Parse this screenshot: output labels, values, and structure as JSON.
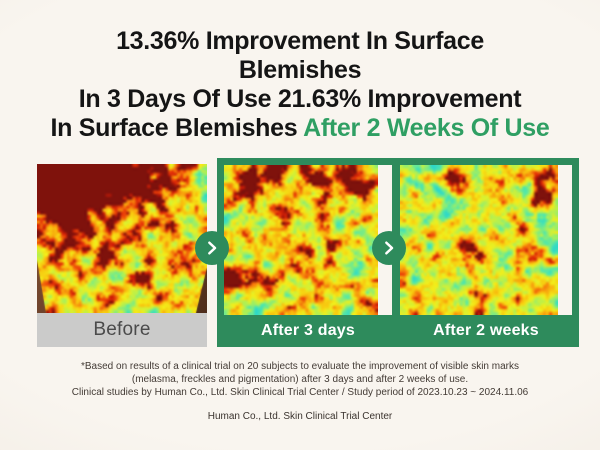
{
  "headline": {
    "line1": "13.36% Improvement In Surface",
    "line2": "Blemishes",
    "line3": "In 3 Days Of Use 21.63% Improvement",
    "line4_black": "In Surface Blemishes ",
    "line4_green": "After 2 Weeks Of Use"
  },
  "colors": {
    "accent_green": "#2e8b5c",
    "headline_green": "#2f9f63",
    "headline_black": "#151515",
    "background_cream": "#f8f4ee",
    "label_gray_bg": "#cbcbca",
    "label_gray_text": "#4b4b4b",
    "label_green_text": "#ffffff"
  },
  "panels": [
    {
      "label": "Before",
      "style": "gray",
      "heatmap": {
        "seed": 11,
        "base": 0.58,
        "grain": 0.22,
        "amp": 2.6,
        "mask_polygon": [
          [
            0,
            0
          ],
          [
            1,
            0
          ],
          [
            1,
            0.695
          ],
          [
            0.935,
            1
          ],
          [
            0.053,
            1
          ],
          [
            0,
            0.645
          ]
        ],
        "skin_colors": [
          "#8a5639",
          "#4f2e1c"
        ],
        "blobs": [
          [
            0.15,
            0.12,
            0.4,
            0.3
          ],
          [
            0.6,
            0.05,
            0.35,
            0.22
          ],
          [
            0.1,
            0.08,
            0.16,
            0.55
          ],
          [
            0.24,
            0.16,
            0.13,
            0.5
          ],
          [
            0.07,
            0.3,
            0.11,
            0.45
          ],
          [
            0.2,
            0.3,
            0.09,
            0.4
          ],
          [
            0.36,
            0.06,
            0.1,
            0.45
          ],
          [
            0.52,
            0.05,
            0.11,
            0.5
          ],
          [
            0.66,
            0.02,
            0.09,
            0.5
          ],
          [
            0.8,
            0.05,
            0.08,
            0.4
          ],
          [
            0.44,
            0.2,
            0.07,
            0.35
          ],
          [
            0.3,
            0.44,
            0.05,
            0.3
          ],
          [
            0.38,
            0.6,
            0.07,
            0.55
          ],
          [
            0.14,
            0.54,
            0.05,
            0.3
          ],
          [
            0.56,
            0.48,
            0.045,
            0.3
          ],
          [
            0.72,
            0.4,
            0.045,
            0.3
          ],
          [
            0.62,
            0.74,
            0.05,
            0.35
          ],
          [
            0.82,
            0.68,
            0.045,
            0.3
          ],
          [
            0.46,
            0.86,
            0.05,
            0.3
          ],
          [
            0.88,
            0.52,
            0.04,
            0.3
          ],
          [
            0.25,
            0.72,
            0.04,
            0.25
          ],
          [
            0.7,
            0.88,
            0.04,
            0.3
          ]
        ]
      }
    },
    {
      "label": "After 3 days",
      "style": "green",
      "heatmap": {
        "seed": 23,
        "base": 0.55,
        "grain": 0.22,
        "amp": 2.6,
        "blobs": [
          [
            0.5,
            0.08,
            0.3,
            0.18
          ],
          [
            0.17,
            0.1,
            0.12,
            0.55
          ],
          [
            0.3,
            0.06,
            0.08,
            0.4
          ],
          [
            0.57,
            0.08,
            0.08,
            0.35
          ],
          [
            0.76,
            0.06,
            0.11,
            0.5
          ],
          [
            0.9,
            0.16,
            0.08,
            0.4
          ],
          [
            0.36,
            0.28,
            0.06,
            0.35
          ],
          [
            0.62,
            0.3,
            0.07,
            0.45
          ],
          [
            0.14,
            0.48,
            0.055,
            0.35
          ],
          [
            0.44,
            0.52,
            0.06,
            0.4
          ],
          [
            0.7,
            0.52,
            0.05,
            0.3
          ],
          [
            0.1,
            0.74,
            0.08,
            0.5
          ],
          [
            0.3,
            0.78,
            0.05,
            0.3
          ],
          [
            0.56,
            0.74,
            0.055,
            0.35
          ],
          [
            0.82,
            0.78,
            0.04,
            0.25
          ]
        ]
      }
    },
    {
      "label": "After 2 weeks",
      "style": "green",
      "heatmap": {
        "seed": 37,
        "base": 0.5,
        "grain": 0.22,
        "amp": 2.6,
        "blobs": [
          [
            0.3,
            0.08,
            0.07,
            0.4
          ],
          [
            0.56,
            0.12,
            0.055,
            0.3
          ],
          [
            0.88,
            0.07,
            0.09,
            0.6
          ],
          [
            0.87,
            0.24,
            0.07,
            0.5
          ],
          [
            0.14,
            0.28,
            0.05,
            0.3
          ],
          [
            0.46,
            0.34,
            0.05,
            0.25
          ],
          [
            0.76,
            0.4,
            0.05,
            0.3
          ],
          [
            0.44,
            0.54,
            0.075,
            0.5
          ],
          [
            0.5,
            0.64,
            0.06,
            0.35
          ],
          [
            0.2,
            0.6,
            0.045,
            0.25
          ],
          [
            0.42,
            0.86,
            0.055,
            0.4
          ],
          [
            0.76,
            0.8,
            0.04,
            0.25
          ],
          [
            0.1,
            0.86,
            0.04,
            0.25
          ]
        ]
      }
    }
  ],
  "heatmap_colormap": [
    [
      0.0,
      "#2fd8c8"
    ],
    [
      0.2,
      "#58e8a4"
    ],
    [
      0.4,
      "#b9f04c"
    ],
    [
      0.55,
      "#f2ee1b"
    ],
    [
      0.72,
      "#f8c20e"
    ],
    [
      0.82,
      "#f6860c"
    ],
    [
      0.9,
      "#e93c08"
    ],
    [
      0.96,
      "#c81c07"
    ],
    [
      1.0,
      "#7f120c"
    ]
  ],
  "arrows": {
    "icon": "chevron-right"
  },
  "disclaimer": {
    "line1": "*Based on results of a clinical trial on 20 subjects to evaluate the improvement of visible skin marks",
    "line2": "(melasma, freckles and pigmentation) after 3 days and after 2 weeks of use.",
    "line3": "Clinical studies by Human Co., Ltd. Skin Clinical Trial Center / Study period of 2023.10.23 ~ 2024.11.06"
  },
  "footer": "Human Co., Ltd. Skin Clinical Trial Center"
}
